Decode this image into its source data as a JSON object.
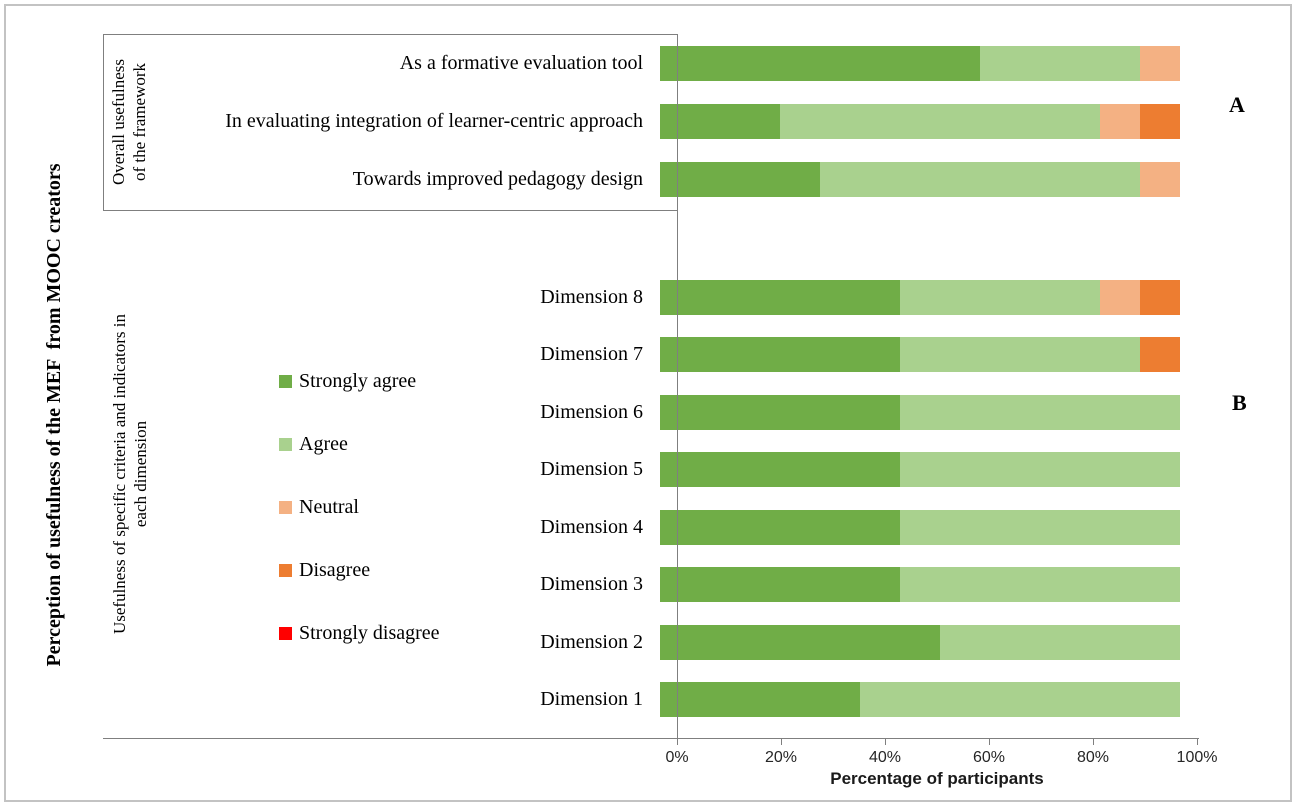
{
  "outer_title": "Perception of usefulness of the MEF  from MOOC creators",
  "sections": [
    {
      "label": "Overall usefulness\nof the framework",
      "annotation": "A"
    },
    {
      "label": "Usefulness of specific criteria and indicators in\neach dimension",
      "annotation": "B"
    }
  ],
  "legend": {
    "position": "left-middle",
    "items": [
      {
        "label": "Strongly agree",
        "color": "#70AD47"
      },
      {
        "label": "Agree",
        "color": "#A9D18E"
      },
      {
        "label": "Neutral",
        "color": "#F4B183"
      },
      {
        "label": "Disagree",
        "color": "#ED7D31"
      },
      {
        "label": "Strongly disagree",
        "color": "#FF0000"
      }
    ]
  },
  "chart_data": {
    "type": "bar",
    "orientation": "horizontal-stacked",
    "unit": "percent of participants",
    "title": "Perception of usefulness of the MEF from MOOC creators",
    "series": [
      "Strongly agree",
      "Agree",
      "Neutral",
      "Disagree",
      "Strongly disagree"
    ],
    "colors": [
      "#70AD47",
      "#A9D18E",
      "#F4B183",
      "#ED7D31",
      "#FF0000"
    ],
    "groups": [
      {
        "name": "Overall usefulness of the framework",
        "annotation": "A",
        "rows": [
          {
            "label": "As a formative evaluation tool",
            "values": [
              61.5,
              30.8,
              7.7,
              0,
              0
            ]
          },
          {
            "label": "In evaluating integration of learner-centric approach",
            "values": [
              23.1,
              61.5,
              7.7,
              7.7,
              0
            ]
          },
          {
            "label": "Towards improved pedagogy design",
            "values": [
              30.8,
              61.5,
              7.7,
              0,
              0
            ]
          }
        ]
      },
      {
        "name": "Usefulness of specific criteria and indicators in each dimension",
        "annotation": "B",
        "rows": [
          {
            "label": "Dimension 8",
            "values": [
              46.2,
              38.5,
              7.7,
              7.7,
              0
            ]
          },
          {
            "label": "Dimension 7",
            "values": [
              46.2,
              46.2,
              0,
              7.7,
              0
            ]
          },
          {
            "label": "Dimension 6",
            "values": [
              46.2,
              53.8,
              0,
              0,
              0
            ]
          },
          {
            "label": "Dimension 5",
            "values": [
              46.2,
              53.8,
              0,
              0,
              0
            ]
          },
          {
            "label": "Dimension 4",
            "values": [
              46.2,
              53.8,
              0,
              0,
              0
            ]
          },
          {
            "label": "Dimension 3",
            "values": [
              46.2,
              53.8,
              0,
              0,
              0
            ]
          },
          {
            "label": "Dimension 2",
            "values": [
              53.8,
              46.2,
              0,
              0,
              0
            ]
          },
          {
            "label": "Dimension 1",
            "values": [
              38.5,
              61.5,
              0,
              0,
              0
            ]
          }
        ]
      }
    ],
    "xlabel": "Percentage of participants",
    "x_ticks": [
      "0%",
      "20%",
      "40%",
      "60%",
      "80%",
      "100%"
    ],
    "xlim": [
      0,
      100
    ],
    "grid": false,
    "legend_position": "left-middle"
  }
}
